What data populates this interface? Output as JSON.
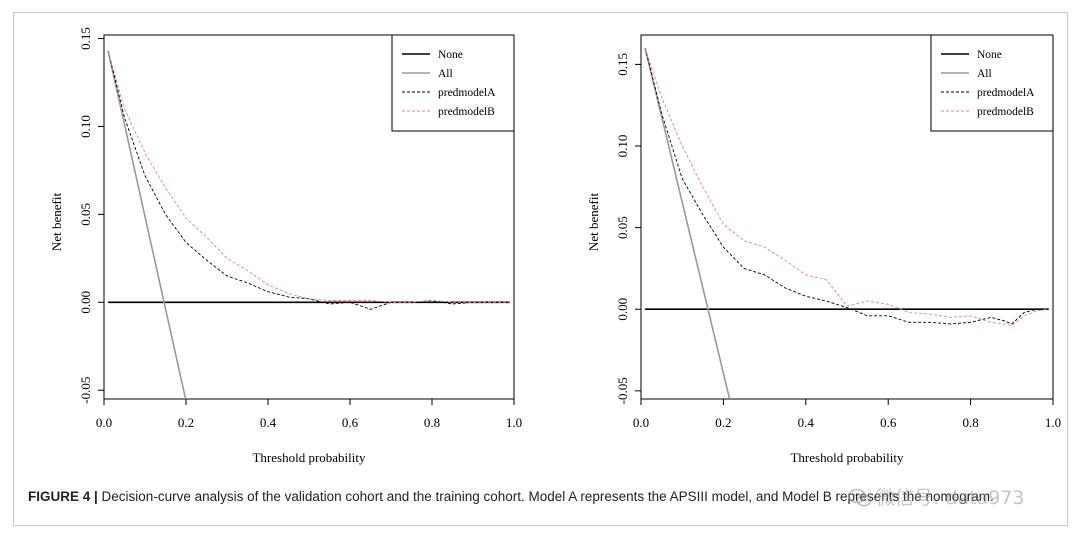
{
  "figure_label": "FIGURE 4 |",
  "caption_text": " Decision-curve analysis of the validation cohort and the training cohort. Model A represents the APSIII model, and Model B represents the nomogram.",
  "watermark_text": "微信号: data973",
  "colors": {
    "none": "#000000",
    "all": "#9a9a9a",
    "predmodelA": "#000000",
    "predmodelB": "#e8808e"
  },
  "chart_data": [
    {
      "type": "line",
      "xlabel": "Threshold probability",
      "ylabel": "Net benefit",
      "xlim": [
        0.0,
        1.0
      ],
      "ylim": [
        -0.055,
        0.152
      ],
      "xticks": [
        "0.0",
        "0.2",
        "0.4",
        "0.6",
        "0.8",
        "1.0"
      ],
      "yticks": [
        "-0.05",
        "0.00",
        "0.05",
        "0.10",
        "0.15"
      ],
      "legend_position": "top-right",
      "legend": [
        "None",
        "All",
        "predmodelA",
        "predmodelB"
      ],
      "series": [
        {
          "name": "None",
          "style": "solid",
          "x": [
            0.01,
            0.99
          ],
          "y": [
            0.0,
            0.0
          ]
        },
        {
          "name": "All",
          "style": "solid",
          "x": [
            0.01,
            0.199
          ],
          "y": [
            0.143,
            -0.055
          ]
        },
        {
          "name": "predmodelA",
          "style": "dashed",
          "x": [
            0.01,
            0.05,
            0.1,
            0.15,
            0.2,
            0.25,
            0.3,
            0.35,
            0.4,
            0.45,
            0.5,
            0.55,
            0.6,
            0.65,
            0.7,
            0.75,
            0.8,
            0.85,
            0.9,
            0.95,
            0.99
          ],
          "y": [
            0.143,
            0.105,
            0.072,
            0.05,
            0.034,
            0.024,
            0.015,
            0.011,
            0.006,
            0.003,
            0.002,
            -0.001,
            0.0,
            -0.004,
            0.0,
            0.0,
            0.001,
            -0.001,
            0.0,
            0.0,
            0.0
          ]
        },
        {
          "name": "predmodelB",
          "style": "dashed",
          "x": [
            0.01,
            0.05,
            0.1,
            0.15,
            0.2,
            0.25,
            0.3,
            0.35,
            0.4,
            0.45,
            0.5,
            0.55,
            0.6,
            0.65,
            0.7,
            0.75,
            0.8,
            0.85,
            0.9,
            0.95,
            0.99
          ],
          "y": [
            0.143,
            0.11,
            0.085,
            0.065,
            0.048,
            0.037,
            0.025,
            0.018,
            0.01,
            0.005,
            0.002,
            0.001,
            0.001,
            0.001,
            0.0,
            0.0,
            0.001,
            0.0,
            0.0,
            0.0,
            0.0
          ]
        }
      ]
    },
    {
      "type": "line",
      "xlabel": "Threshold probability",
      "ylabel": "Net benefit",
      "xlim": [
        0.0,
        1.0
      ],
      "ylim": [
        -0.055,
        0.168
      ],
      "xticks": [
        "0.0",
        "0.2",
        "0.4",
        "0.6",
        "0.8",
        "1.0"
      ],
      "yticks": [
        "-0.05",
        "0.00",
        "0.05",
        "0.10",
        "0.15"
      ],
      "legend_position": "top-right",
      "legend": [
        "None",
        "All",
        "predmodelA",
        "predmodelB"
      ],
      "series": [
        {
          "name": "None",
          "style": "solid",
          "x": [
            0.01,
            0.99
          ],
          "y": [
            0.0,
            0.0
          ]
        },
        {
          "name": "All",
          "style": "solid",
          "x": [
            0.01,
            0.215
          ],
          "y": [
            0.16,
            -0.055
          ]
        },
        {
          "name": "predmodelA",
          "style": "dashed",
          "x": [
            0.01,
            0.05,
            0.1,
            0.15,
            0.2,
            0.25,
            0.3,
            0.35,
            0.4,
            0.45,
            0.5,
            0.55,
            0.6,
            0.65,
            0.7,
            0.75,
            0.8,
            0.85,
            0.88,
            0.9,
            0.93,
            0.96,
            0.99
          ],
          "y": [
            0.16,
            0.12,
            0.08,
            0.058,
            0.038,
            0.025,
            0.021,
            0.013,
            0.008,
            0.005,
            0.001,
            -0.004,
            -0.004,
            -0.008,
            -0.008,
            -0.009,
            -0.008,
            -0.005,
            -0.007,
            -0.009,
            -0.002,
            0.0,
            0.0
          ]
        },
        {
          "name": "predmodelB",
          "style": "dashed",
          "x": [
            0.01,
            0.05,
            0.1,
            0.15,
            0.2,
            0.25,
            0.3,
            0.35,
            0.4,
            0.45,
            0.5,
            0.55,
            0.6,
            0.65,
            0.7,
            0.75,
            0.8,
            0.85,
            0.88,
            0.9,
            0.93,
            0.96,
            0.99
          ],
          "y": [
            0.16,
            0.13,
            0.1,
            0.075,
            0.052,
            0.042,
            0.038,
            0.03,
            0.021,
            0.018,
            0.002,
            0.005,
            0.003,
            -0.002,
            -0.003,
            -0.005,
            -0.004,
            -0.008,
            -0.009,
            -0.01,
            -0.004,
            -0.001,
            0.0
          ]
        }
      ]
    }
  ]
}
